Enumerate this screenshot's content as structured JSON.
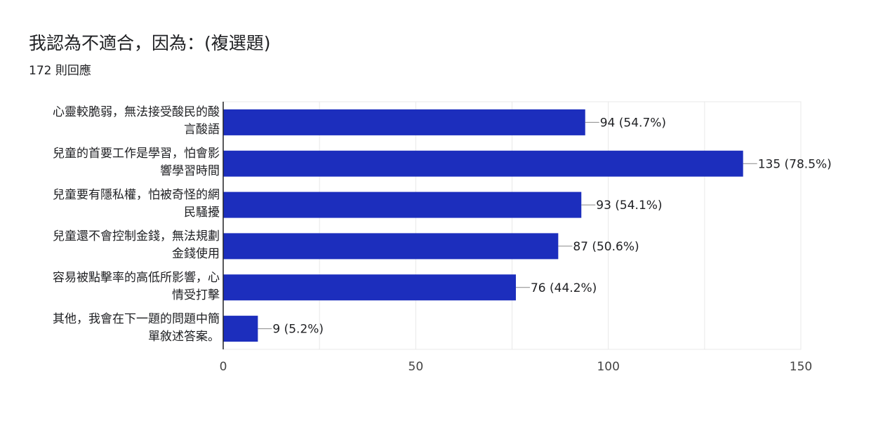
{
  "header": {
    "title": "我認為不適合，因為：(複選題)",
    "responses": "172 則回應"
  },
  "colors": {
    "bar": "#1c2ebd",
    "grid": "#e8e8e8",
    "axis": "#202124"
  },
  "chart_data": {
    "type": "bar",
    "orientation": "horizontal",
    "title": "我認為不適合，因為：(複選題)",
    "categories": [
      [
        "心靈較脆弱，無法接受酸民的酸",
        "言酸語"
      ],
      [
        "兒童的首要工作是學習，怕會影",
        "響學習時間"
      ],
      [
        "兒童要有隱私權，怕被奇怪的網",
        "民騷擾"
      ],
      [
        "兒童還不會控制金錢，無法規劃",
        "金錢使用"
      ],
      [
        "容易被點擊率的高低所影響，心",
        "情受打擊"
      ],
      [
        "其他，我會在下一題的問題中簡",
        "單敘述答案。"
      ]
    ],
    "values": [
      94,
      135,
      93,
      87,
      76,
      9
    ],
    "value_labels": [
      "94 (54.7%)",
      "135 (78.5%)",
      "93 (54.1%)",
      "87 (50.6%)",
      "76 (44.2%)",
      "9 (5.2%)"
    ],
    "xlim": [
      0,
      150
    ],
    "xticks": [
      0,
      50,
      100,
      150
    ],
    "grid": true,
    "legend": "none"
  }
}
